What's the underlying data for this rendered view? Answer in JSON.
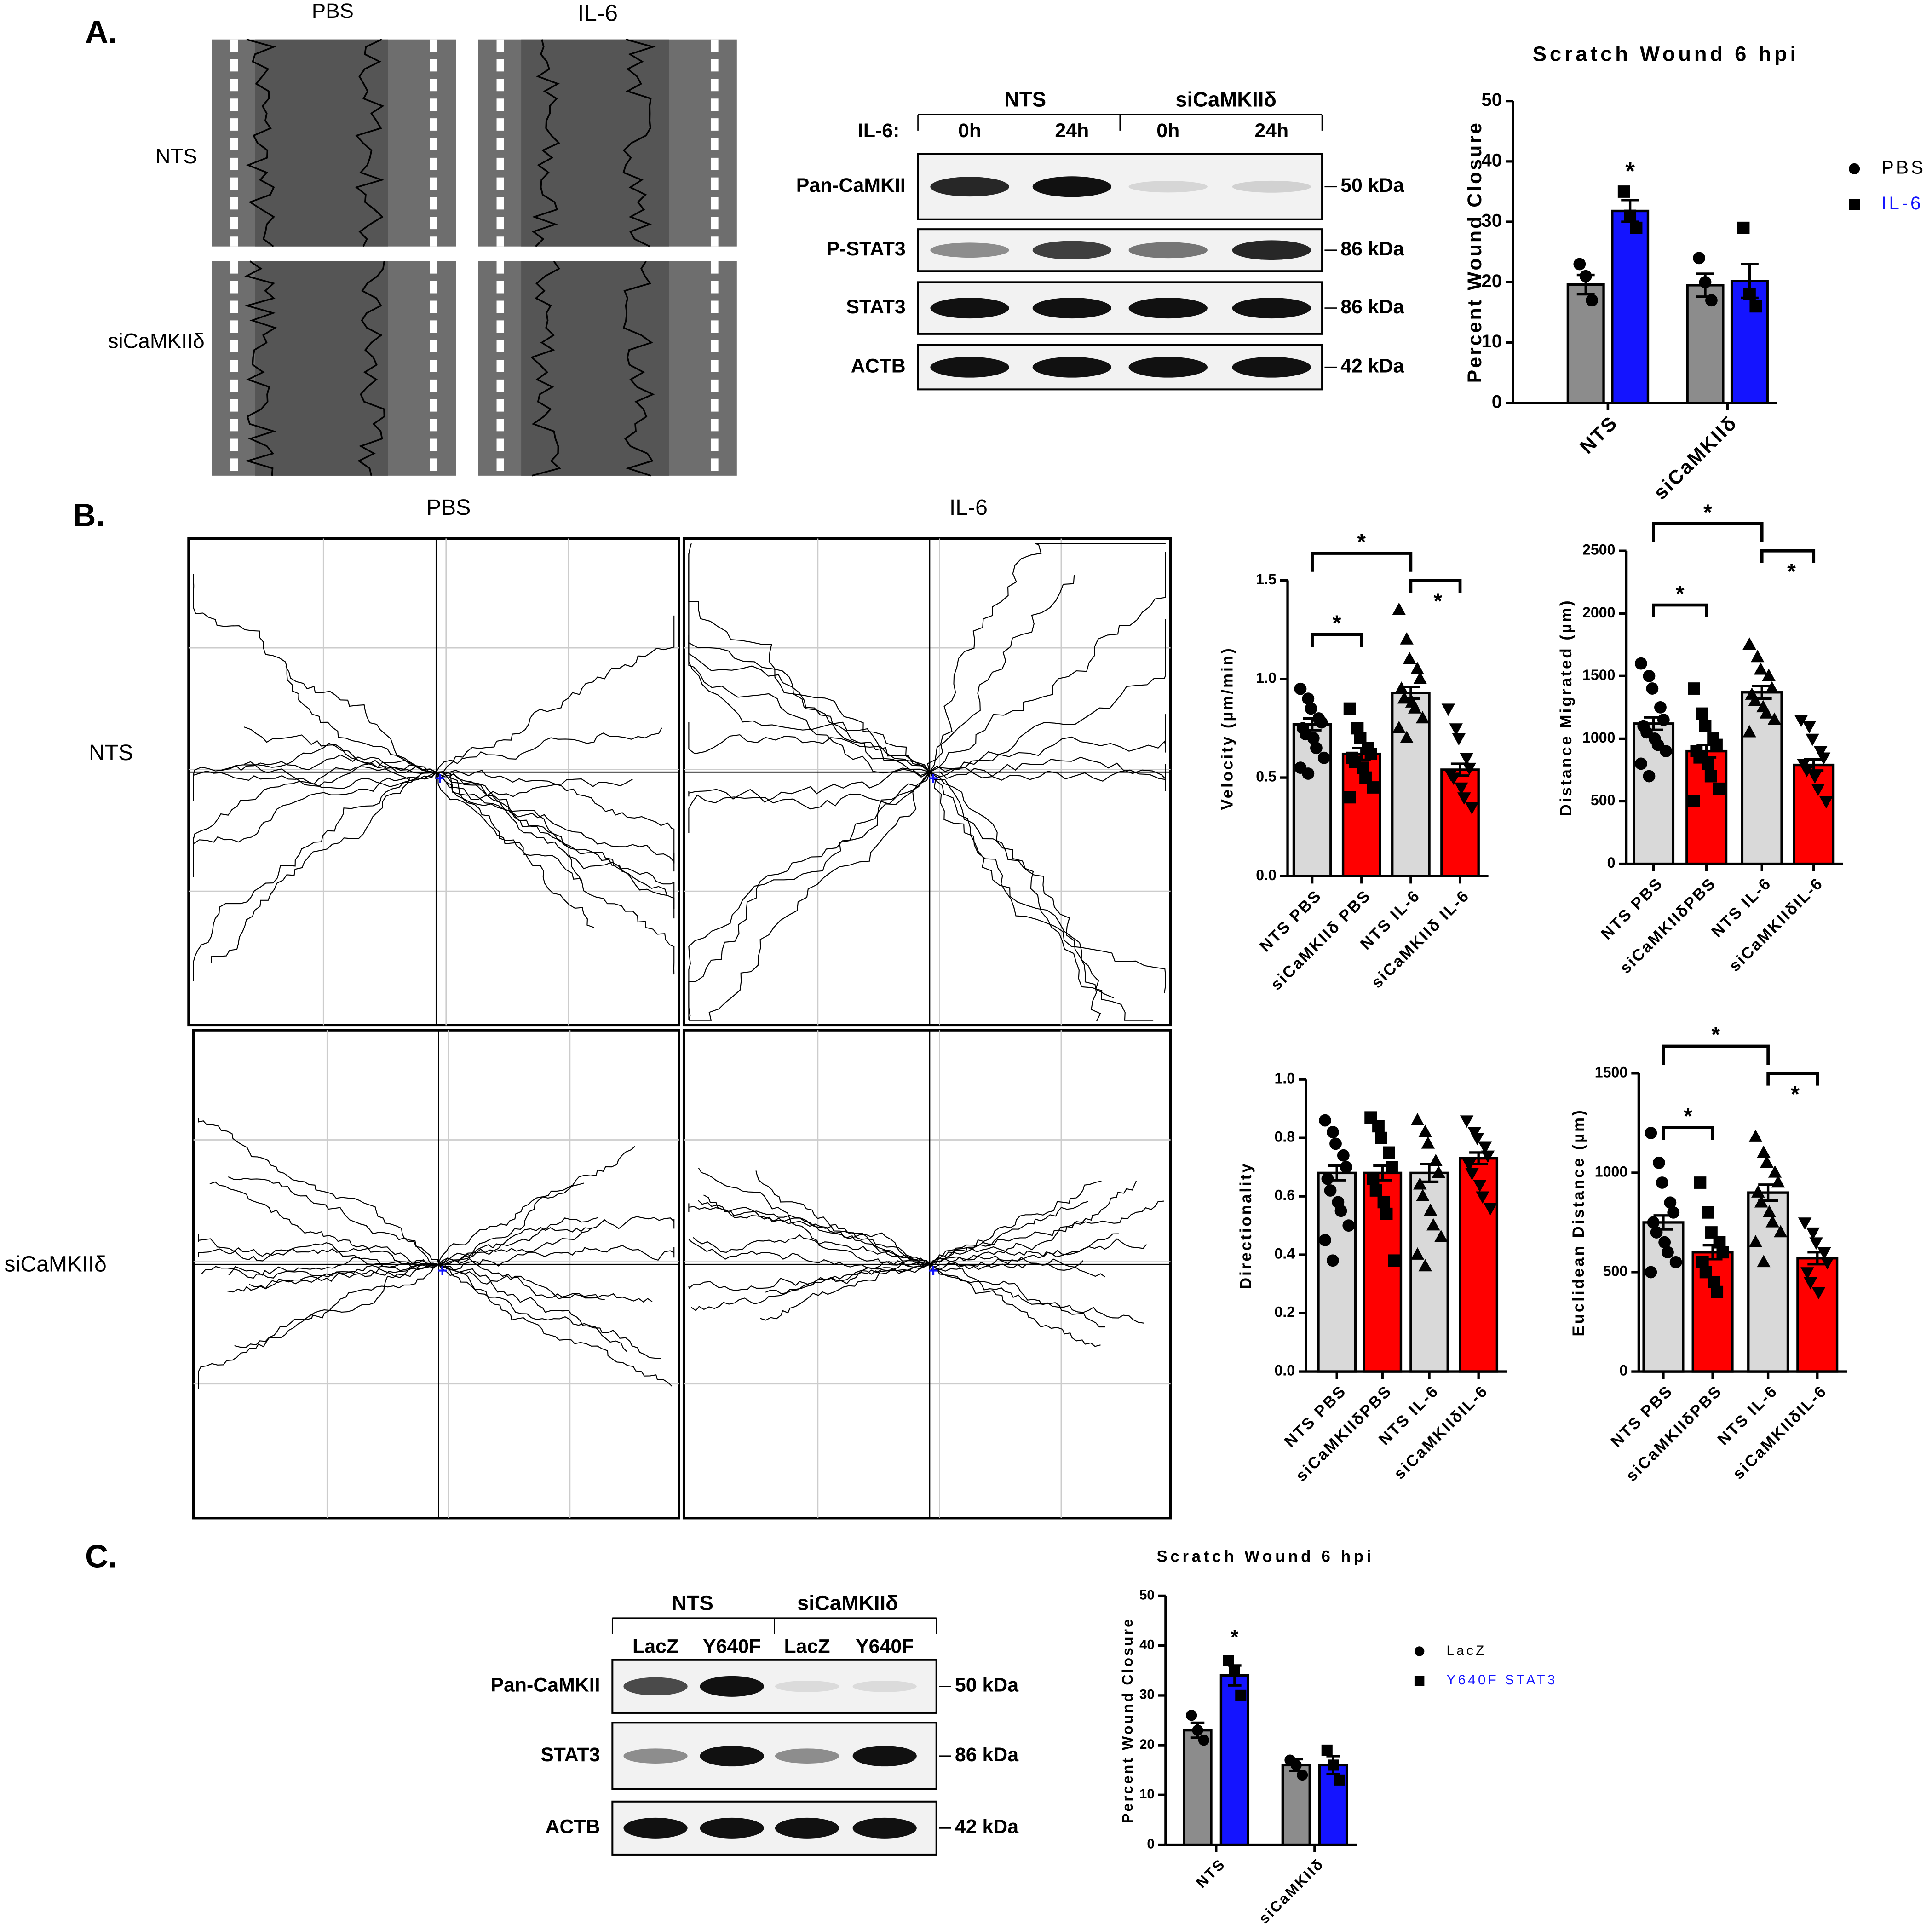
{
  "panels": {
    "a": "A.",
    "b": "B.",
    "c": "C."
  },
  "panel_a": {
    "image_cols": [
      "PBS",
      "IL-6"
    ],
    "image_rows": [
      "NTS",
      "siCaMKIIδ"
    ],
    "blot": {
      "groups": [
        "NTS",
        "siCaMKIIδ"
      ],
      "treatment_label": "IL-6:",
      "lanes": [
        "0h",
        "24h",
        "0h",
        "24h"
      ],
      "rows": [
        {
          "label": "Pan-CaMKII",
          "size": "50 kDa"
        },
        {
          "label": "P-STAT3",
          "size": "86 kDa"
        },
        {
          "label": "STAT3",
          "size": "86 kDa"
        },
        {
          "label": "ACTB",
          "size": "42 kDa"
        }
      ]
    }
  },
  "panel_b": {
    "track_cols": [
      "PBS",
      "IL-6"
    ],
    "track_rows": [
      "NTS",
      "siCaMKIIδ"
    ]
  },
  "panel_c": {
    "blot": {
      "groups": [
        "NTS",
        "siCaMKIIδ"
      ],
      "lanes": [
        "LacZ",
        "Y640F",
        "LacZ",
        "Y640F"
      ],
      "rows": [
        {
          "label": "Pan-CaMKII",
          "size": "50 kDa"
        },
        {
          "label": "STAT3",
          "size": "86 kDa"
        },
        {
          "label": "ACTB",
          "size": "42 kDa"
        }
      ]
    }
  },
  "chart_data": [
    {
      "type": "bar",
      "title": "Scratch Wound 6 hpi",
      "y_label": "Percent Wound Closure",
      "categories": [
        "NTS",
        "siCaMKIIδ"
      ],
      "ylim": [
        0,
        50
      ],
      "yticks": [
        0,
        10,
        20,
        30,
        40,
        50
      ],
      "series": [
        {
          "name": "PBS",
          "color": "#8c8c8c",
          "label_color": "#000000",
          "marker": "circle",
          "values": [
            19.6,
            19.5
          ],
          "errors": [
            1.6,
            1.9
          ],
          "points": [
            [
              23,
              21,
              17
            ],
            [
              24,
              20,
              17
            ]
          ]
        },
        {
          "name": "IL-6",
          "color": "#1414ff",
          "label_color": "#1414ff",
          "marker": "square",
          "values": [
            31.8,
            20.2
          ],
          "errors": [
            1.8,
            2.8
          ],
          "points": [
            [
              35,
              31,
              29
            ],
            [
              29,
              18,
              16
            ]
          ]
        }
      ],
      "annotations": [
        {
          "category": 0,
          "series": 1,
          "label": "*"
        }
      ]
    },
    {
      "type": "bar",
      "y_label": "Velocity (µm/min)",
      "categories": [
        "NTS PBS",
        "siCaMKIIδ PBS",
        "NTS IL-6",
        "siCaMKIIδ IL-6"
      ],
      "ylim": [
        0,
        1.5
      ],
      "yticks": [
        {
          "value": 0,
          "label": "0.0"
        },
        {
          "value": 0.5,
          "label": "0.5"
        },
        {
          "value": 1,
          "label": "1.0"
        },
        {
          "value": 1.5,
          "label": "1.5"
        }
      ],
      "colors": [
        "#d9d9d9",
        "#ff0000",
        "#d9d9d9",
        "#ff0000"
      ],
      "markers": [
        "circle",
        "square",
        "triangle",
        "triangle-down"
      ],
      "values": [
        0.77,
        0.62,
        0.93,
        0.54
      ],
      "errors": [
        0.03,
        0.03,
        0.03,
        0.03
      ],
      "points": [
        [
          0.95,
          0.9,
          0.85,
          0.8,
          0.78,
          0.75,
          0.72,
          0.7,
          0.65,
          0.6,
          0.55,
          0.52
        ],
        [
          0.85,
          0.75,
          0.7,
          0.65,
          0.62,
          0.6,
          0.58,
          0.55,
          0.5,
          0.45,
          0.4
        ],
        [
          1.35,
          1.2,
          1.1,
          1.05,
          1.0,
          0.95,
          0.9,
          0.88,
          0.85,
          0.8,
          0.75,
          0.7
        ],
        [
          0.85,
          0.75,
          0.7,
          0.6,
          0.55,
          0.52,
          0.5,
          0.45,
          0.4,
          0.35
        ]
      ],
      "brackets": [
        {
          "from": 0,
          "to": 1,
          "label": "*"
        },
        {
          "from": 2,
          "to": 3,
          "label": "*"
        },
        {
          "from": 0,
          "to": 2,
          "label": "*"
        }
      ]
    },
    {
      "type": "bar",
      "y_label": "Distance Migrated (µm)",
      "categories": [
        "NTS PBS",
        "siCaMKIIδPBS",
        "NTS IL-6",
        "siCaMKIIδIL-6"
      ],
      "ylim": [
        0,
        2500
      ],
      "yticks": [
        0,
        500,
        1000,
        1500,
        2000,
        2500
      ],
      "colors": [
        "#d9d9d9",
        "#ff0000",
        "#d9d9d9",
        "#ff0000"
      ],
      "markers": [
        "circle",
        "square",
        "triangle",
        "triangle-down"
      ],
      "values": [
        1120,
        900,
        1370,
        790
      ],
      "errors": [
        50,
        50,
        50,
        45
      ],
      "points": [
        [
          1600,
          1500,
          1400,
          1250,
          1150,
          1100,
          1050,
          1000,
          950,
          900,
          800,
          700
        ],
        [
          1400,
          1200,
          1100,
          1000,
          950,
          900,
          850,
          800,
          700,
          600,
          500
        ],
        [
          1750,
          1650,
          1550,
          1500,
          1400,
          1350,
          1300,
          1250,
          1200,
          1150,
          1050
        ],
        [
          1150,
          1100,
          1000,
          900,
          850,
          800,
          750,
          700,
          600,
          500
        ]
      ],
      "brackets": [
        {
          "from": 0,
          "to": 1,
          "label": "*"
        },
        {
          "from": 2,
          "to": 3,
          "label": "*"
        },
        {
          "from": 0,
          "to": 2,
          "label": "*"
        }
      ]
    },
    {
      "type": "bar",
      "y_label": "Directionality",
      "categories": [
        "NTS PBS",
        "siCaMKIIδPBS",
        "NTS IL-6",
        "siCaMKIIδIL-6"
      ],
      "ylim": [
        0,
        1
      ],
      "yticks": [
        {
          "value": 0,
          "label": "0.0"
        },
        {
          "value": 0.2,
          "label": "0.2"
        },
        {
          "value": 0.4,
          "label": "0.4"
        },
        {
          "value": 0.6,
          "label": "0.6"
        },
        {
          "value": 0.8,
          "label": "0.8"
        },
        {
          "value": 1,
          "label": "1.0"
        }
      ],
      "colors": [
        "#d9d9d9",
        "#ff0000",
        "#d9d9d9",
        "#ff0000"
      ],
      "markers": [
        "circle",
        "square",
        "triangle",
        "triangle-down"
      ],
      "values": [
        0.68,
        0.68,
        0.68,
        0.73
      ],
      "errors": [
        0.025,
        0.025,
        0.03,
        0.02
      ],
      "points": [
        [
          0.86,
          0.82,
          0.78,
          0.74,
          0.7,
          0.66,
          0.62,
          0.58,
          0.55,
          0.5,
          0.45,
          0.38
        ],
        [
          0.87,
          0.84,
          0.8,
          0.75,
          0.7,
          0.66,
          0.62,
          0.58,
          0.54,
          0.38
        ],
        [
          0.86,
          0.82,
          0.78,
          0.72,
          0.68,
          0.64,
          0.6,
          0.55,
          0.5,
          0.46,
          0.4,
          0.36
        ],
        [
          0.86,
          0.82,
          0.8,
          0.77,
          0.74,
          0.71,
          0.68,
          0.64,
          0.6,
          0.56
        ]
      ]
    },
    {
      "type": "bar",
      "y_label": "Euclidean Distance (µm)",
      "categories": [
        "NTS PBS",
        "siCaMKIIδPBS",
        "NTS IL-6",
        "siCaMKIIδIL-6"
      ],
      "ylim": [
        0,
        1500
      ],
      "yticks": [
        0,
        500,
        1000,
        1500
      ],
      "colors": [
        "#d9d9d9",
        "#ff0000",
        "#d9d9d9",
        "#ff0000"
      ],
      "markers": [
        "circle",
        "square",
        "triangle",
        "triangle-down"
      ],
      "values": [
        750,
        600,
        900,
        570
      ],
      "errors": [
        35,
        35,
        40,
        30
      ],
      "points": [
        [
          1200,
          1050,
          950,
          850,
          800,
          750,
          700,
          650,
          600,
          550,
          500
        ],
        [
          950,
          800,
          700,
          650,
          600,
          550,
          500,
          450,
          400
        ],
        [
          1180,
          1100,
          1050,
          1000,
          950,
          900,
          850,
          800,
          750,
          700,
          650,
          550
        ],
        [
          750,
          700,
          650,
          600,
          550,
          500,
          450,
          400
        ]
      ],
      "brackets": [
        {
          "from": 0,
          "to": 1,
          "label": "*"
        },
        {
          "from": 2,
          "to": 3,
          "label": "*"
        },
        {
          "from": 0,
          "to": 2,
          "label": "*"
        }
      ]
    },
    {
      "type": "bar",
      "title": "Scratch Wound 6 hpi",
      "y_label": "Percent Wound Closure",
      "categories": [
        "NTS",
        "siCaMKIIδ"
      ],
      "ylim": [
        0,
        50
      ],
      "yticks": [
        0,
        10,
        20,
        30,
        40,
        50
      ],
      "series": [
        {
          "name": "LacZ",
          "color": "#8c8c8c",
          "label_color": "#000000",
          "marker": "circle",
          "values": [
            23,
            16
          ],
          "errors": [
            1.5,
            1.2
          ],
          "points": [
            [
              26,
              23,
              21
            ],
            [
              17,
              16,
              14
            ]
          ]
        },
        {
          "name": "Y640F STAT3",
          "color": "#1414ff",
          "label_color": "#1414ff",
          "marker": "square",
          "values": [
            34,
            16
          ],
          "errors": [
            2,
            1.8
          ],
          "points": [
            [
              37,
              35,
              30
            ],
            [
              19,
              16,
              13
            ]
          ]
        }
      ],
      "annotations": [
        {
          "category": 0,
          "series": 1,
          "label": "*"
        }
      ]
    }
  ]
}
